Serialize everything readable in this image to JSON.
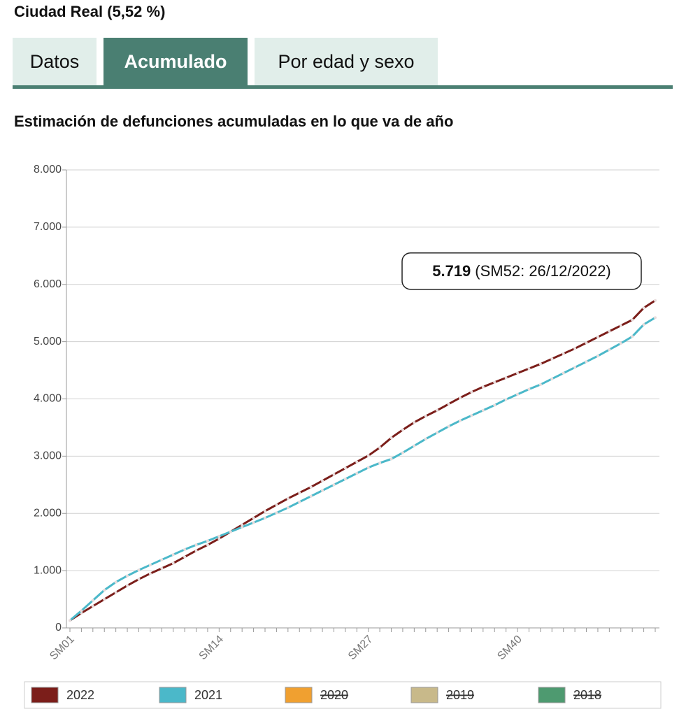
{
  "header": {
    "title": "Ciudad Real (5,52 %)"
  },
  "tabs": [
    {
      "label": "Datos",
      "active": false
    },
    {
      "label": "Acumulado",
      "active": true
    },
    {
      "label": "Por edad y sexo",
      "active": false
    }
  ],
  "chart_data": {
    "type": "line",
    "title": "Estimación de defunciones acumuladas en lo que va de año",
    "categories": [
      "SM01",
      null,
      null,
      null,
      null,
      null,
      null,
      null,
      null,
      null,
      null,
      null,
      null,
      "SM14",
      null,
      null,
      null,
      null,
      null,
      null,
      null,
      null,
      null,
      null,
      null,
      null,
      "SM27",
      null,
      null,
      null,
      null,
      null,
      null,
      null,
      null,
      null,
      null,
      null,
      null,
      "SM40",
      null,
      null,
      null,
      null,
      null,
      null,
      null,
      null,
      null,
      null,
      null,
      null
    ],
    "series": [
      {
        "name": "2022",
        "color": "#7b1e1a",
        "visible": true,
        "values": [
          130,
          260,
          380,
          500,
          620,
          740,
          850,
          950,
          1040,
          1130,
          1240,
          1350,
          1450,
          1560,
          1680,
          1800,
          1920,
          2040,
          2150,
          2260,
          2360,
          2460,
          2570,
          2680,
          2790,
          2900,
          3010,
          3150,
          3320,
          3460,
          3590,
          3700,
          3800,
          3910,
          4020,
          4120,
          4210,
          4290,
          4370,
          4450,
          4530,
          4610,
          4700,
          4790,
          4880,
          4980,
          5080,
          5180,
          5280,
          5380,
          5590,
          5719
        ]
      },
      {
        "name": "2021",
        "color": "#4bb8c9",
        "visible": true,
        "values": [
          130,
          300,
          480,
          660,
          800,
          910,
          1010,
          1100,
          1190,
          1280,
          1370,
          1450,
          1520,
          1600,
          1680,
          1760,
          1840,
          1920,
          2010,
          2100,
          2200,
          2300,
          2400,
          2500,
          2600,
          2700,
          2800,
          2880,
          2950,
          3060,
          3180,
          3300,
          3410,
          3520,
          3620,
          3710,
          3800,
          3890,
          3990,
          4080,
          4170,
          4250,
          4350,
          4450,
          4550,
          4650,
          4750,
          4860,
          4970,
          5090,
          5300,
          5420
        ]
      },
      {
        "name": "2020",
        "color": "#f0a030",
        "visible": false
      },
      {
        "name": "2019",
        "color": "#c8b98a",
        "visible": false
      },
      {
        "name": "2018",
        "color": "#4e9a70",
        "visible": false
      }
    ],
    "ylim": [
      0,
      8000
    ],
    "yticks": [
      0,
      {
        "value": 1000,
        "label": "1.000"
      },
      {
        "value": 2000,
        "label": "2.000"
      },
      {
        "value": 3000,
        "label": "3.000"
      },
      {
        "value": 4000,
        "label": "4.000"
      },
      {
        "value": 5000,
        "label": "5.000"
      },
      {
        "value": 6000,
        "label": "6.000"
      },
      {
        "value": 7000,
        "label": "7.000"
      },
      {
        "value": 8000,
        "label": "8.000"
      }
    ],
    "grid": true,
    "annotation": {
      "value": 5719,
      "label": "5.719",
      "text": "(SM52: 26/12/2022)"
    }
  }
}
